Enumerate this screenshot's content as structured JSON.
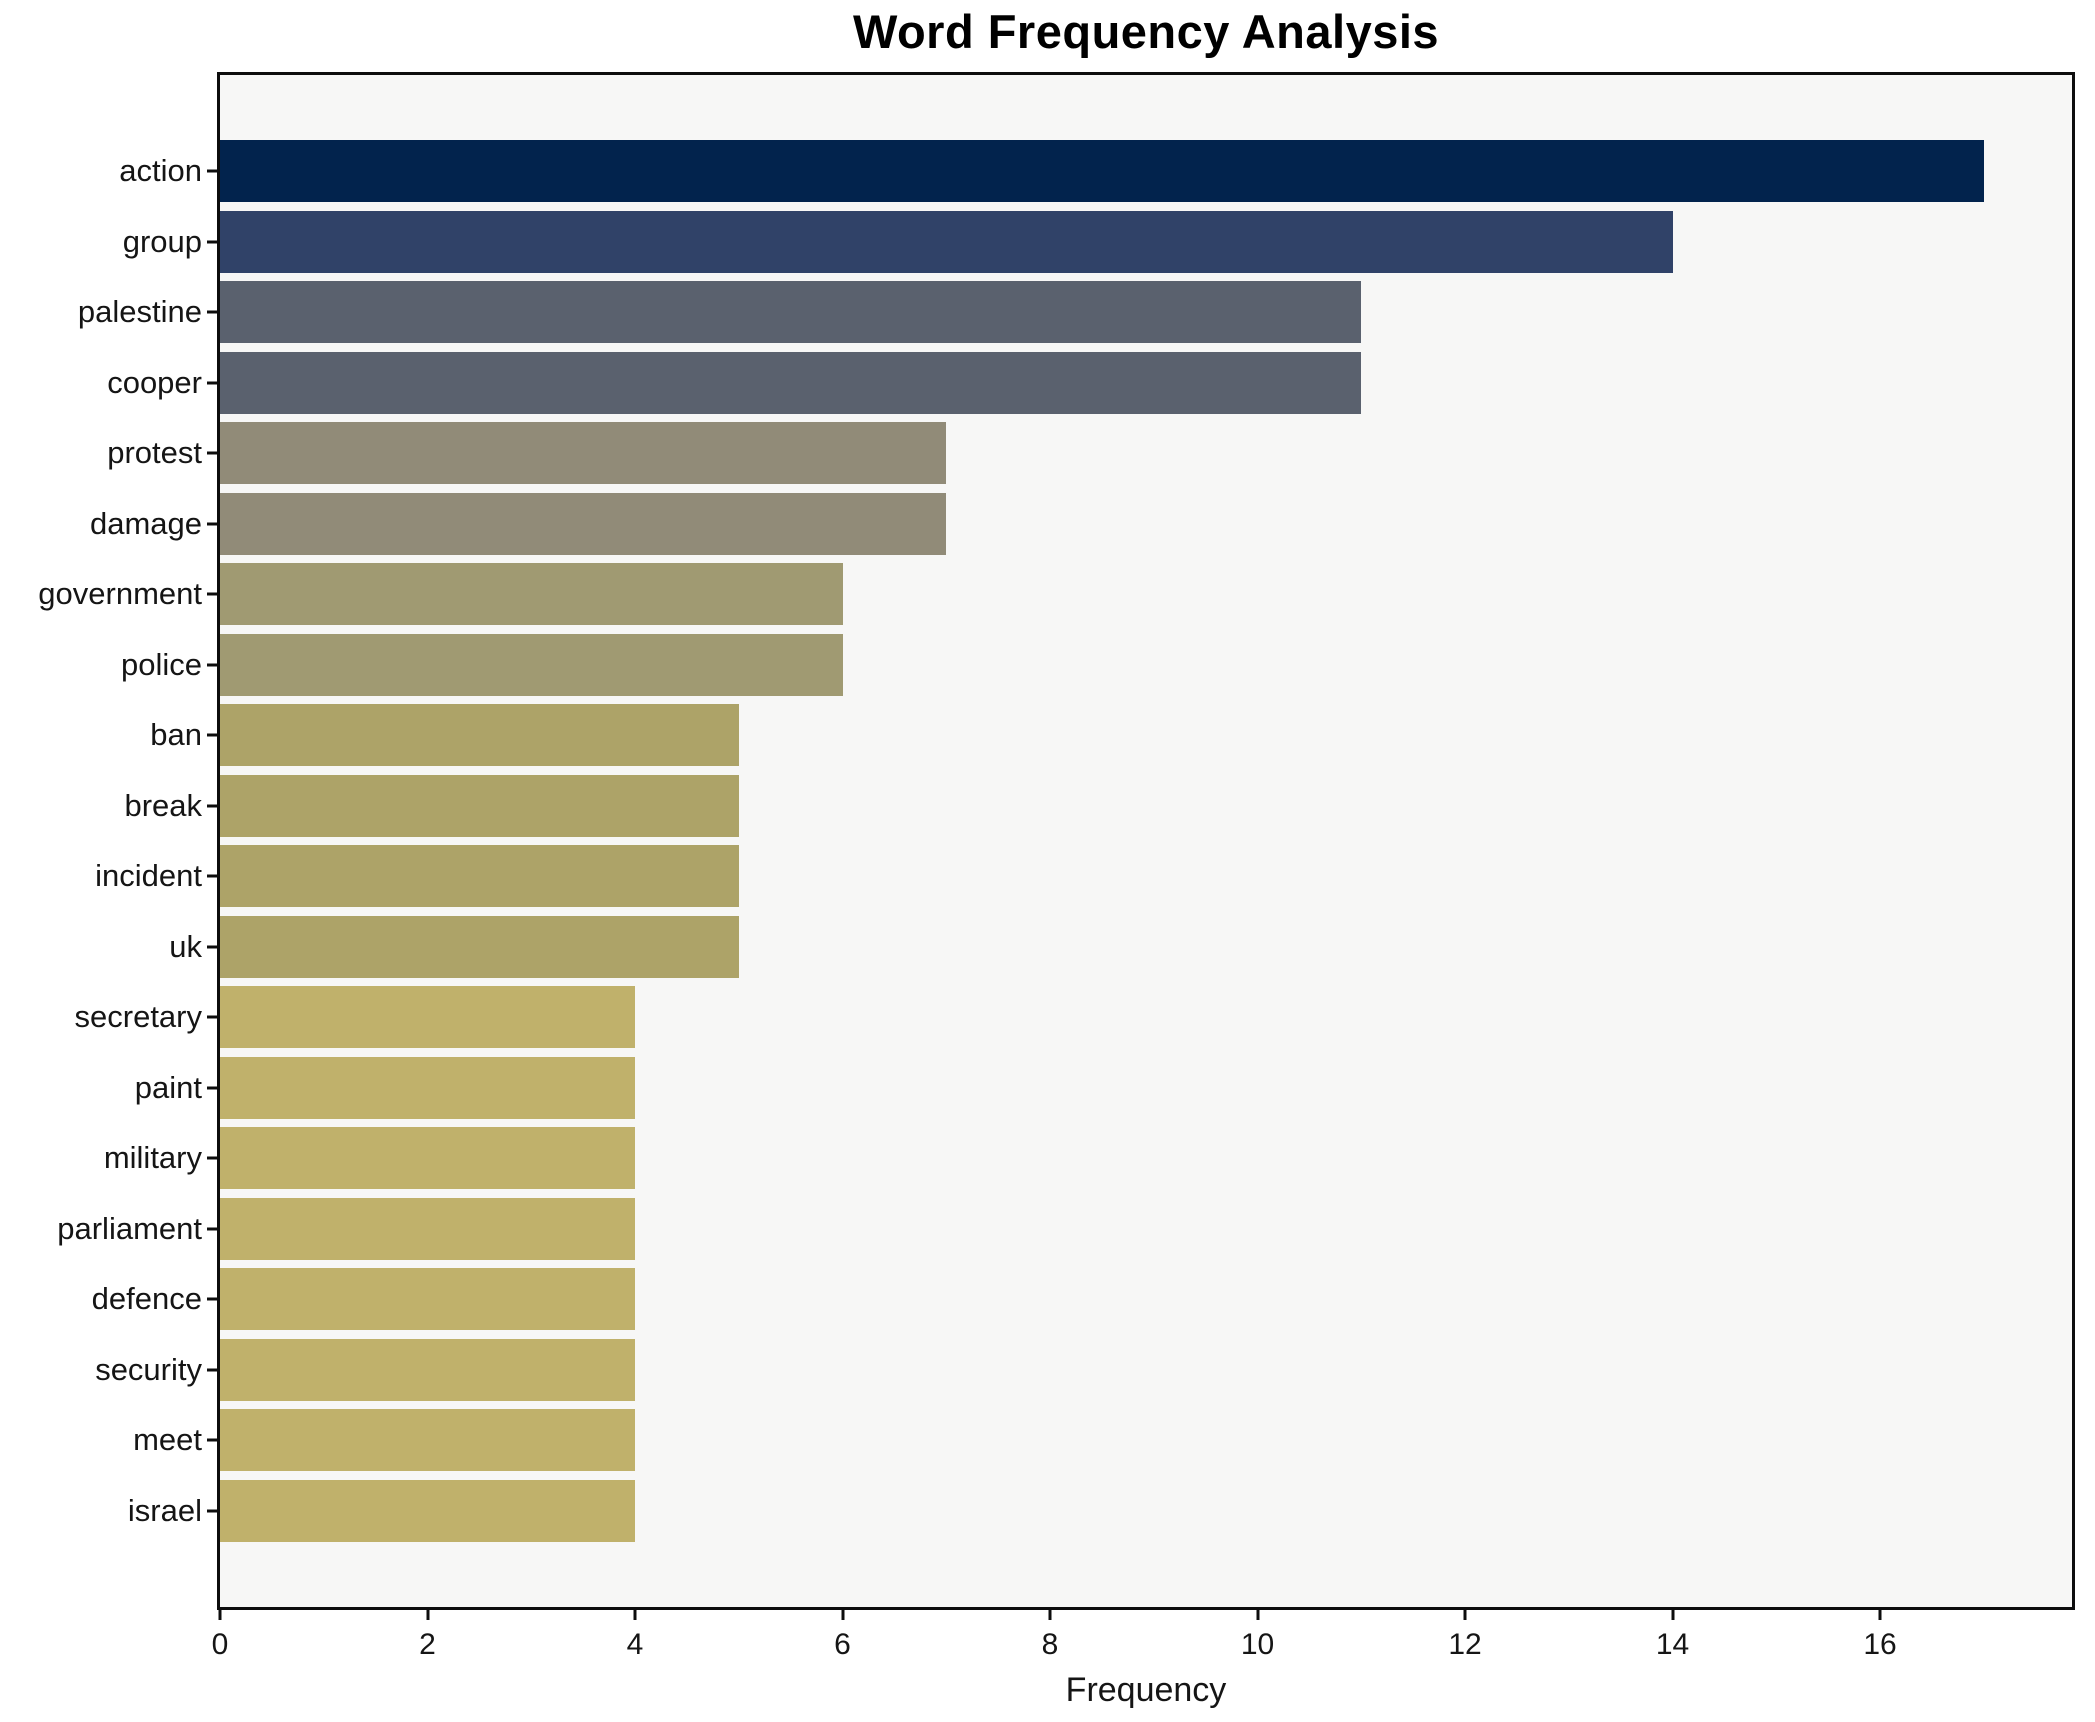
{
  "chart_data": {
    "type": "bar",
    "orientation": "horizontal",
    "title": "Word Frequency Analysis",
    "xlabel": "Frequency",
    "ylabel": "",
    "categories": [
      "action",
      "group",
      "palestine",
      "cooper",
      "protest",
      "damage",
      "government",
      "police",
      "ban",
      "break",
      "incident",
      "uk",
      "secretary",
      "paint",
      "military",
      "parliament",
      "defence",
      "security",
      "meet",
      "israel"
    ],
    "values": [
      17,
      14,
      11,
      11,
      7,
      7,
      6,
      6,
      5,
      5,
      5,
      5,
      4,
      4,
      4,
      4,
      4,
      4,
      4,
      4
    ],
    "bar_colors": [
      "#02234d",
      "#304268",
      "#5a616e",
      "#5a616e",
      "#918b78",
      "#918b78",
      "#a09a72",
      "#a09a72",
      "#ada368",
      "#ada368",
      "#ada368",
      "#ada368",
      "#c0b16b",
      "#c0b16b",
      "#c0b16b",
      "#c0b16b",
      "#c0b16b",
      "#c0b16b",
      "#c0b16b",
      "#c0b16b"
    ],
    "xticks": [
      0,
      2,
      4,
      6,
      8,
      10,
      12,
      14,
      16
    ],
    "xlim": [
      0,
      17.85
    ],
    "grid": "off",
    "legend": "none",
    "plot_background": "#f7f7f6",
    "spine_color": "#0d0d0d"
  }
}
